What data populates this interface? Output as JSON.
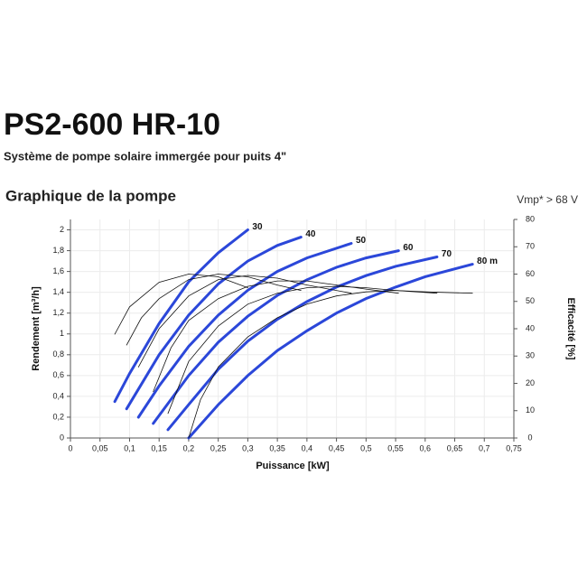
{
  "header": {
    "title": "PS2-600 HR-10",
    "subtitle": "Système de pompe solaire immergée pour puits 4\""
  },
  "chart_data": {
    "type": "line",
    "title": "Graphique de la pompe",
    "annotation": "Vmp* > 68 V",
    "xlabel": "Puissance [kW]",
    "ylabel": "Rendement [m³/h]",
    "y2label": "Efficacité [%]",
    "xlim": [
      0,
      0.75
    ],
    "ylim": [
      0,
      2.1
    ],
    "y2lim": [
      0,
      80
    ],
    "grid": true,
    "xticks": [
      0,
      {
        "value": 0.05,
        "label": "0,05"
      },
      {
        "value": 0.1,
        "label": "0,1"
      },
      {
        "value": 0.15,
        "label": "0,15"
      },
      {
        "value": 0.2,
        "label": "0,2"
      },
      {
        "value": 0.25,
        "label": "0,25"
      },
      {
        "value": 0.3,
        "label": "0,3"
      },
      {
        "value": 0.35,
        "label": "0,35"
      },
      {
        "value": 0.4,
        "label": "0,4"
      },
      {
        "value": 0.45,
        "label": "0,45"
      },
      {
        "value": 0.5,
        "label": "0,5"
      },
      {
        "value": 0.55,
        "label": "0,55"
      },
      {
        "value": 0.6,
        "label": "0,6"
      },
      {
        "value": 0.65,
        "label": "0,65"
      },
      {
        "value": 0.7,
        "label": "0,7"
      },
      {
        "value": 0.75,
        "label": "0,75"
      }
    ],
    "yticks": [
      0,
      {
        "value": 0.2,
        "label": "0,2"
      },
      {
        "value": 0.4,
        "label": "0,4"
      },
      {
        "value": 0.6,
        "label": "0,6"
      },
      {
        "value": 0.8,
        "label": "0,8"
      },
      1,
      {
        "value": 1.2,
        "label": "1,2"
      },
      {
        "value": 1.4,
        "label": "1,4"
      },
      {
        "value": 1.6,
        "label": "1,6"
      },
      {
        "value": 1.8,
        "label": "1,8"
      },
      2
    ],
    "y2ticks": [
      0,
      10,
      20,
      30,
      40,
      50,
      60,
      70,
      80
    ],
    "series": [
      {
        "name": "30",
        "color": "#2b47d9",
        "x": [
          0.075,
          0.1,
          0.15,
          0.2,
          0.25,
          0.3
        ],
        "values": [
          0.35,
          0.62,
          1.1,
          1.5,
          1.78,
          2.0
        ]
      },
      {
        "name": "40",
        "color": "#2b47d9",
        "x": [
          0.095,
          0.15,
          0.2,
          0.25,
          0.3,
          0.35,
          0.39
        ],
        "values": [
          0.28,
          0.8,
          1.18,
          1.48,
          1.7,
          1.85,
          1.93
        ]
      },
      {
        "name": "50",
        "color": "#2b47d9",
        "x": [
          0.115,
          0.15,
          0.2,
          0.25,
          0.3,
          0.35,
          0.4,
          0.475
        ],
        "values": [
          0.2,
          0.5,
          0.88,
          1.18,
          1.42,
          1.6,
          1.73,
          1.87
        ]
      },
      {
        "name": "60",
        "color": "#2b47d9",
        "x": [
          0.14,
          0.2,
          0.25,
          0.3,
          0.35,
          0.4,
          0.45,
          0.5,
          0.555
        ],
        "values": [
          0.14,
          0.6,
          0.92,
          1.17,
          1.37,
          1.52,
          1.64,
          1.73,
          1.8
        ]
      },
      {
        "name": "70",
        "color": "#2b47d9",
        "x": [
          0.165,
          0.2,
          0.25,
          0.3,
          0.35,
          0.4,
          0.45,
          0.5,
          0.55,
          0.62
        ],
        "values": [
          0.08,
          0.32,
          0.66,
          0.93,
          1.14,
          1.31,
          1.45,
          1.56,
          1.65,
          1.74
        ]
      },
      {
        "name": "80 m",
        "color": "#2b47d9",
        "x": [
          0.2,
          0.25,
          0.3,
          0.35,
          0.4,
          0.45,
          0.5,
          0.55,
          0.6,
          0.68
        ],
        "values": [
          0,
          0.32,
          0.6,
          0.84,
          1.03,
          1.2,
          1.34,
          1.45,
          1.55,
          1.67
        ]
      },
      {
        "color": "#111111",
        "axis": "y2",
        "x": [
          0.075,
          0.1,
          0.15,
          0.2,
          0.25,
          0.3
        ],
        "values": [
          38,
          48,
          57,
          60,
          59,
          55
        ]
      },
      {
        "color": "#111111",
        "axis": "y2",
        "x": [
          0.095,
          0.12,
          0.15,
          0.2,
          0.25,
          0.3,
          0.35,
          0.39
        ],
        "values": [
          34,
          44,
          51,
          58,
          60,
          59,
          56,
          54
        ]
      },
      {
        "color": "#111111",
        "axis": "y2",
        "x": [
          0.115,
          0.15,
          0.2,
          0.25,
          0.3,
          0.35,
          0.4,
          0.475
        ],
        "values": [
          26,
          40,
          52,
          58,
          59.5,
          58.5,
          56,
          53
        ]
      },
      {
        "color": "#111111",
        "axis": "y2",
        "x": [
          0.14,
          0.17,
          0.2,
          0.25,
          0.3,
          0.35,
          0.4,
          0.45,
          0.5,
          0.555
        ],
        "values": [
          17,
          33,
          43,
          51,
          55.5,
          57.5,
          57.5,
          56,
          54.5,
          53
        ]
      },
      {
        "color": "#111111",
        "axis": "y2",
        "x": [
          0.165,
          0.2,
          0.25,
          0.3,
          0.35,
          0.4,
          0.45,
          0.5,
          0.55,
          0.62
        ],
        "values": [
          9,
          28,
          41,
          49,
          53,
          55,
          55.5,
          55,
          54,
          53
        ]
      },
      {
        "color": "#111111",
        "axis": "y2",
        "x": [
          0.2,
          0.22,
          0.25,
          0.3,
          0.35,
          0.4,
          0.45,
          0.5,
          0.55,
          0.6,
          0.68
        ],
        "values": [
          0,
          14,
          26,
          37,
          44,
          49,
          52,
          53.5,
          54,
          53.5,
          53
        ]
      }
    ]
  }
}
